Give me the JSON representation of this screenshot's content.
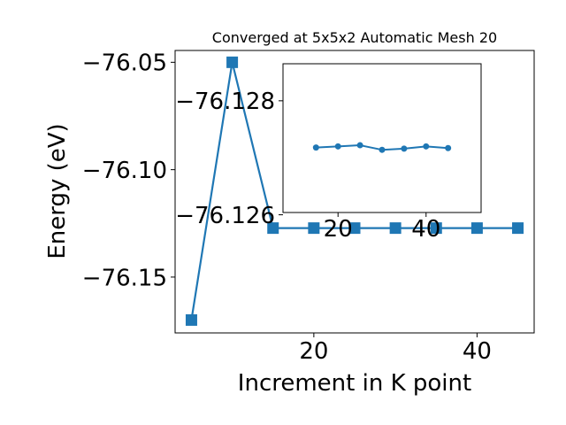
{
  "chart_data": [
    {
      "type": "line",
      "title": "Converged at 5x5x2 Automatic Mesh 20",
      "xlabel": "Increment in K point",
      "ylabel": "Energy (eV)",
      "x": [
        5,
        10,
        15,
        20,
        25,
        30,
        35,
        40,
        45
      ],
      "series": [
        {
          "values": [
            -76.17,
            -76.05,
            -76.1272,
            -76.1272,
            -76.1272,
            -76.1272,
            -76.1272,
            -76.1272,
            -76.1272
          ],
          "marker": "square",
          "color": "#1f77b4"
        }
      ],
      "xlim": [
        3.0,
        47.0
      ],
      "ylim": [
        -76.176,
        -76.0445
      ],
      "xticks": [
        20,
        40
      ],
      "xtick_labels": [
        "20",
        "40"
      ],
      "yticks": [
        -76.05,
        -76.1,
        -76.15
      ],
      "ytick_labels": [
        "−76.05",
        "−76.10",
        "−76.15"
      ],
      "grid": false
    },
    {
      "type": "line",
      "title": "",
      "xlabel": "",
      "ylabel": "",
      "x": [
        15,
        20,
        25,
        30,
        35,
        40,
        45
      ],
      "series": [
        {
          "values": [
            -76.12718,
            -76.1272,
            -76.12722,
            -76.12714,
            -76.12716,
            -76.1272,
            -76.12717
          ],
          "marker": "circle",
          "color": "#1f77b4"
        }
      ],
      "xlim": [
        7.5,
        52.5
      ],
      "ylim": [
        -76.12604,
        -76.12865
      ],
      "xticks": [
        20,
        40
      ],
      "xtick_labels": [
        "20",
        "40"
      ],
      "yticks": [
        -76.128,
        -76.126
      ],
      "ytick_labels": [
        "−76.128",
        "−76.126"
      ],
      "grid": false
    }
  ]
}
